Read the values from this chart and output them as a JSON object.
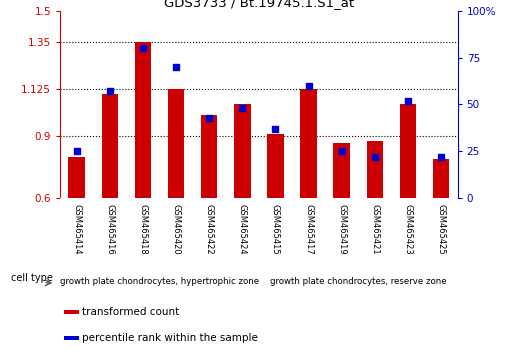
{
  "title": "GDS3733 / Bt.19745.1.S1_at",
  "samples": [
    "GSM465414",
    "GSM465416",
    "GSM465418",
    "GSM465420",
    "GSM465422",
    "GSM465424",
    "GSM465415",
    "GSM465417",
    "GSM465419",
    "GSM465421",
    "GSM465423",
    "GSM465425"
  ],
  "transformed_count": [
    0.8,
    1.1,
    1.35,
    1.125,
    1.0,
    1.05,
    0.91,
    1.125,
    0.865,
    0.875,
    1.05,
    0.79
  ],
  "percentile_rank": [
    25,
    57,
    80,
    70,
    43,
    48,
    37,
    60,
    25,
    22,
    52,
    22
  ],
  "bar_color": "#cc0000",
  "dot_color": "#0000cc",
  "ylim_left": [
    0.6,
    1.5
  ],
  "ylim_right": [
    0,
    100
  ],
  "yticks_left": [
    0.6,
    0.9,
    1.125,
    1.35,
    1.5
  ],
  "ytick_labels_left": [
    "0.6",
    "0.9",
    "1.125",
    "1.35",
    "1.5"
  ],
  "yticks_right": [
    0,
    25,
    50,
    75,
    100
  ],
  "ytick_labels_right": [
    "0",
    "25",
    "50",
    "75",
    "100%"
  ],
  "hlines": [
    0.9,
    1.125,
    1.35
  ],
  "group1_label": "growth plate chondrocytes, hypertrophic zone",
  "group2_label": "growth plate chondrocytes, reserve zone",
  "group1_count": 6,
  "group2_count": 6,
  "cell_type_label": "cell type",
  "legend1": "transformed count",
  "legend2": "percentile rank within the sample",
  "bar_width": 0.5,
  "background_color": "#ffffff",
  "plot_bg": "#ffffff",
  "tick_color_left": "#cc0000",
  "tick_color_right": "#0000cc",
  "group_bg": "#88dd88",
  "xtick_bg": "#cccccc"
}
